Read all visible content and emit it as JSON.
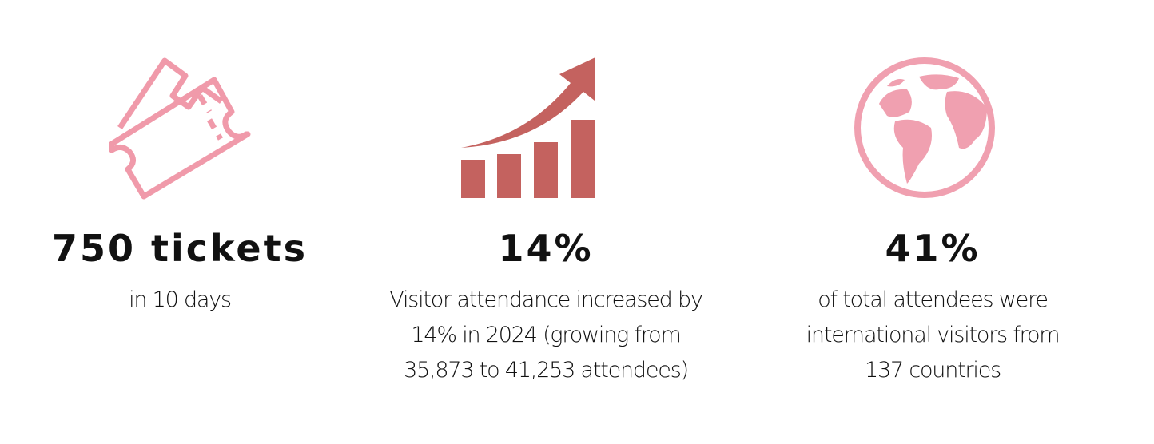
{
  "stats": [
    {
      "headline": "750 tickets",
      "description": [
        "in 10 days"
      ]
    },
    {
      "headline": "14%",
      "description": [
        "Visitor attendance increased by",
        "14% in 2024 (growing from",
        "35,873 to 41,253 attendees)"
      ]
    },
    {
      "headline": "41%",
      "description": [
        "of total attendees were",
        "international visitors from",
        "137 countries"
      ]
    }
  ]
}
